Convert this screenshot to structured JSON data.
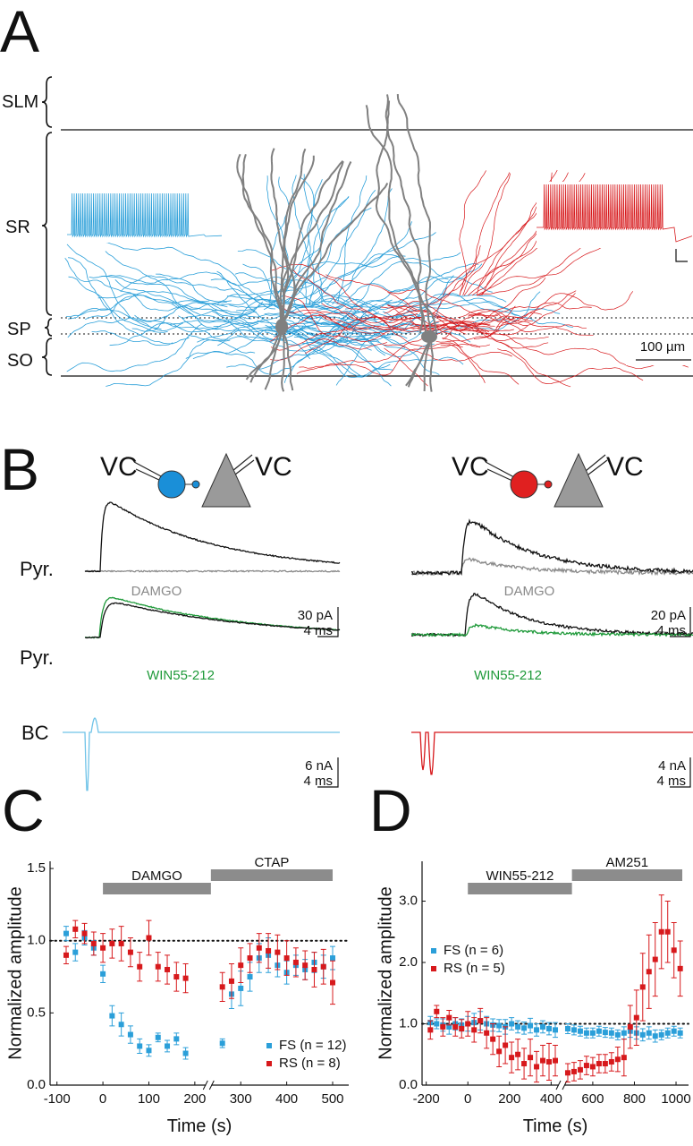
{
  "panel_a": {
    "label": "A",
    "layers": {
      "slm": "SLM",
      "sr": "SR",
      "sp": "SP",
      "so": "SO"
    },
    "scale_bar": "100 µm"
  },
  "panel_b": {
    "label": "B",
    "left": {
      "pre_clamp": "VC",
      "post_clamp": "VC",
      "row1_label": "Pyr.",
      "row1_drug": "DAMGO",
      "row1_scale": [
        "30 pA",
        "4 ms"
      ],
      "row2_label": "Pyr.",
      "row2_drug": "WIN55-212",
      "row3_label": "BC",
      "row3_scale": [
        "6 nA",
        "4 ms"
      ]
    },
    "right": {
      "pre_clamp": "VC",
      "post_clamp": "VC",
      "row1_drug": "DAMGO",
      "row1_scale": [
        "20 pA",
        "4 ms"
      ],
      "row2_drug": "WIN55-212",
      "row3_scale": [
        "4 nA",
        "4 ms"
      ]
    }
  },
  "chart_data": [
    {
      "type": "scatter",
      "label": "C",
      "xlabel": "Time (s)",
      "ylabel": "Normalized amplitude",
      "xlim": [
        -115,
        535
      ],
      "ylim": [
        0,
        1.55
      ],
      "xticks": [
        -100,
        0,
        100,
        200,
        300,
        400,
        500
      ],
      "yticks": [
        {
          "value": 0,
          "label": "0.0"
        },
        0.5,
        {
          "value": 1,
          "label": "1.0"
        },
        1.5
      ],
      "x_break": 230,
      "ref_line": 1,
      "legend": "lower right",
      "bars": [
        {
          "label": "DAMGO",
          "start": 0,
          "end": 235
        },
        {
          "label": "CTAP",
          "start": 235,
          "end": 500
        }
      ],
      "x": [
        -80,
        -60,
        -40,
        -20,
        0,
        20,
        40,
        60,
        80,
        100,
        120,
        140,
        160,
        180,
        260,
        280,
        300,
        320,
        340,
        360,
        380,
        400,
        420,
        440,
        460,
        480,
        500
      ],
      "series": [
        {
          "name": "FS  (n = 12)",
          "color": "#2b9fd9",
          "values": [
            1.05,
            0.92,
            1.02,
            0.95,
            0.77,
            0.48,
            0.42,
            0.35,
            0.27,
            0.24,
            0.33,
            0.27,
            0.32,
            0.22,
            0.29,
            0.63,
            0.67,
            0.75,
            0.88,
            0.9,
            0.83,
            0.78,
            0.83,
            0.8,
            0.85,
            0.82,
            0.88
          ],
          "errors": [
            0.05,
            0.06,
            0.05,
            0.05,
            0.06,
            0.07,
            0.08,
            0.06,
            0.05,
            0.04,
            0.03,
            0.04,
            0.04,
            0.04,
            0.03,
            0.1,
            0.12,
            0.1,
            0.1,
            0.12,
            0.08,
            0.08,
            0.07,
            0.07,
            0.07,
            0.08,
            0.08
          ]
        },
        {
          "name": "RS  (n = 8)",
          "color": "#d7191c",
          "values": [
            0.9,
            1.08,
            1.05,
            0.98,
            0.95,
            0.98,
            0.98,
            0.92,
            0.82,
            1.02,
            0.82,
            0.8,
            0.75,
            0.74,
            0.68,
            0.72,
            0.83,
            0.88,
            0.95,
            0.93,
            0.92,
            0.88,
            0.85,
            0.83,
            0.8,
            0.82,
            0.71
          ],
          "errors": [
            0.06,
            0.06,
            0.07,
            0.08,
            0.1,
            0.1,
            0.12,
            0.1,
            0.1,
            0.12,
            0.1,
            0.1,
            0.1,
            0.1,
            0.1,
            0.12,
            0.12,
            0.1,
            0.1,
            0.12,
            0.12,
            0.12,
            0.1,
            0.1,
            0.12,
            0.12,
            0.15
          ]
        }
      ]
    },
    {
      "type": "scatter",
      "label": "D",
      "xlabel": "Time (s)",
      "ylabel": "Normalized amplitude",
      "xlim": [
        -220,
        1060
      ],
      "ylim": [
        0,
        3.65
      ],
      "xticks": [
        -200,
        0,
        200,
        400,
        600,
        800,
        1000
      ],
      "yticks": [
        {
          "value": 0,
          "label": "0.0"
        },
        {
          "value": 1,
          "label": "1.0"
        },
        {
          "value": 2,
          "label": "2.0"
        },
        {
          "value": 3,
          "label": "3.0"
        }
      ],
      "x_break": 450,
      "ref_line": 1,
      "legend": "upper left",
      "bars": [
        {
          "label": "WIN55-212",
          "start": 0,
          "end": 500
        },
        {
          "label": "AM251",
          "start": 500,
          "end": 1030
        }
      ],
      "x": [
        -180,
        -150,
        -120,
        -90,
        -60,
        -30,
        0,
        30,
        60,
        90,
        120,
        150,
        180,
        210,
        240,
        270,
        300,
        330,
        360,
        390,
        420,
        480,
        510,
        540,
        570,
        600,
        630,
        660,
        690,
        720,
        750,
        780,
        810,
        840,
        870,
        900,
        930,
        960,
        990,
        1020
      ],
      "series": [
        {
          "name": "FS  (n = 6)",
          "color": "#2b9fd9",
          "values": [
            1.02,
            1.0,
            0.98,
            0.95,
            1.0,
            0.98,
            1.0,
            1.02,
            1.05,
            1.0,
            0.98,
            0.97,
            0.95,
            1.0,
            0.95,
            0.93,
            0.97,
            0.9,
            0.95,
            0.92,
            0.9,
            0.92,
            0.9,
            0.88,
            0.85,
            0.85,
            0.88,
            0.86,
            0.85,
            0.82,
            0.85,
            0.88,
            0.85,
            0.82,
            0.85,
            0.8,
            0.82,
            0.85,
            0.88,
            0.85
          ],
          "errors": [
            0.1,
            0.08,
            0.1,
            0.12,
            0.1,
            0.1,
            0.12,
            0.15,
            0.15,
            0.12,
            0.1,
            0.1,
            0.12,
            0.1,
            0.1,
            0.1,
            0.12,
            0.1,
            0.1,
            0.1,
            0.12,
            0.08,
            0.08,
            0.08,
            0.08,
            0.08,
            0.08,
            0.08,
            0.08,
            0.08,
            0.1,
            0.1,
            0.1,
            0.1,
            0.1,
            0.1,
            0.08,
            0.08,
            0.08,
            0.08
          ]
        },
        {
          "name": "RS  (n = 5)",
          "color": "#d7191c",
          "values": [
            0.9,
            1.2,
            0.95,
            1.1,
            0.95,
            0.92,
            1.0,
            0.9,
            1.05,
            0.85,
            0.75,
            0.55,
            0.65,
            0.45,
            0.5,
            0.35,
            0.45,
            0.3,
            0.4,
            0.38,
            0.4,
            0.2,
            0.22,
            0.25,
            0.32,
            0.3,
            0.35,
            0.35,
            0.38,
            0.42,
            0.45,
            0.95,
            1.1,
            1.6,
            1.85,
            2.05,
            2.5,
            2.5,
            2.2,
            1.9
          ],
          "errors": [
            0.15,
            0.1,
            0.15,
            0.12,
            0.15,
            0.15,
            0.2,
            0.2,
            0.2,
            0.25,
            0.25,
            0.25,
            0.3,
            0.25,
            0.25,
            0.25,
            0.3,
            0.25,
            0.25,
            0.3,
            0.25,
            0.15,
            0.15,
            0.15,
            0.15,
            0.15,
            0.15,
            0.15,
            0.15,
            0.2,
            0.3,
            0.35,
            0.45,
            0.55,
            0.6,
            0.6,
            0.6,
            0.5,
            0.45,
            0.45
          ]
        }
      ]
    }
  ]
}
